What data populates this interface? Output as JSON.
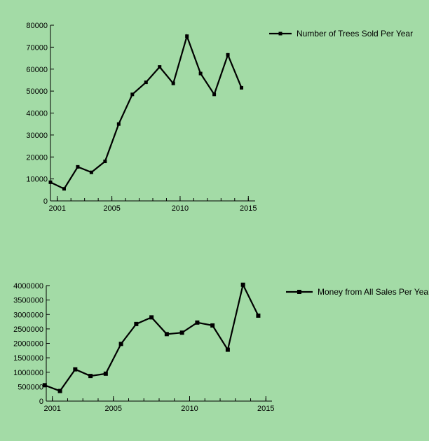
{
  "chart_data": [
    {
      "type": "line",
      "xlim": [
        2000.5,
        2015.5
      ],
      "ylim": [
        0,
        80000
      ],
      "x_ticks": [
        2001,
        2005,
        2010,
        2015
      ],
      "x_tick_labels": [
        "2001",
        "2005",
        "2010",
        "2015"
      ],
      "y_ticks": [
        0,
        10000,
        20000,
        30000,
        40000,
        50000,
        60000,
        70000,
        80000
      ],
      "y_tick_labels": [
        "0",
        "10000",
        "20000",
        "30000",
        "40000",
        "50000",
        "60000",
        "70000",
        "80000"
      ],
      "legend_position": "top-right",
      "series": [
        {
          "name": "Number of Trees Sold Per Year",
          "color": "#000000",
          "x": [
            2000,
            2001,
            2002,
            2003,
            2004,
            2005,
            2006,
            2007,
            2008,
            2009,
            2010,
            2011,
            2012,
            2013,
            2014
          ],
          "values": [
            8500,
            5500,
            15500,
            13000,
            18000,
            35000,
            48500,
            54000,
            61000,
            53500,
            75000,
            58000,
            48500,
            66500,
            51500
          ]
        }
      ]
    },
    {
      "type": "line",
      "xlim": [
        2000.6,
        2015.4
      ],
      "ylim": [
        0,
        4000000
      ],
      "x_ticks": [
        2001,
        2005,
        2010,
        2015
      ],
      "x_tick_labels": [
        "2001",
        "2005",
        "2010",
        "2015"
      ],
      "y_ticks": [
        0,
        500000,
        1000000,
        1500000,
        2000000,
        2500000,
        3000000,
        3500000,
        4000000
      ],
      "y_tick_labels": [
        "0",
        "500000",
        "1000000",
        "1500000",
        "2000000",
        "2500000",
        "3000000",
        "3500000",
        "4000000"
      ],
      "legend_position": "top-right",
      "series": [
        {
          "name": "Money from All Sales Per Year",
          "color": "#000000",
          "x": [
            2000,
            2001,
            2002,
            2003,
            2004,
            2005,
            2006,
            2007,
            2008,
            2009,
            2010,
            2011,
            2012,
            2013,
            2014
          ],
          "values": [
            550000,
            350000,
            1100000,
            870000,
            950000,
            1980000,
            2670000,
            2900000,
            2320000,
            2370000,
            2720000,
            2620000,
            1780000,
            4030000,
            2960000
          ]
        }
      ]
    }
  ]
}
